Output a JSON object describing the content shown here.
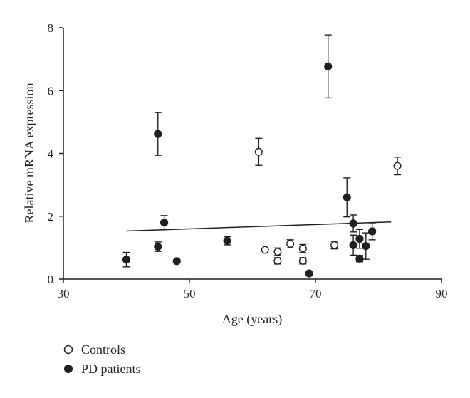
{
  "chart_data": {
    "type": "scatter",
    "title": "",
    "xlabel": "Age (years)",
    "ylabel": "Relative mRNA expression",
    "xlim": [
      30,
      90
    ],
    "ylim": [
      0,
      8
    ],
    "xticks": [
      "30",
      "50",
      "70",
      "90"
    ],
    "yticks": [
      "0",
      "2",
      "4",
      "6",
      "8"
    ],
    "grid": false,
    "legend_position": "bottom-left",
    "series": [
      {
        "name": "Controls",
        "marker": "open-circle",
        "points": [
          {
            "x": 61,
            "y": 4.05,
            "err": 0.43
          },
          {
            "x": 62,
            "y": 0.93,
            "err": 0
          },
          {
            "x": 64,
            "y": 0.87,
            "err": 0.12
          },
          {
            "x": 64,
            "y": 0.58,
            "err": 0.1
          },
          {
            "x": 66,
            "y": 1.12,
            "err": 0.13
          },
          {
            "x": 68,
            "y": 0.97,
            "err": 0.13
          },
          {
            "x": 68,
            "y": 0.58,
            "err": 0.1
          },
          {
            "x": 73,
            "y": 1.08,
            "err": 0.12
          },
          {
            "x": 83,
            "y": 3.6,
            "err": 0.28
          }
        ]
      },
      {
        "name": "PD patients",
        "marker": "filled-circle",
        "points": [
          {
            "x": 40,
            "y": 0.62,
            "err": 0.23
          },
          {
            "x": 45,
            "y": 4.62,
            "err": 0.68
          },
          {
            "x": 45,
            "y": 1.03,
            "err": 0.15
          },
          {
            "x": 46,
            "y": 1.8,
            "err": 0.22
          },
          {
            "x": 48,
            "y": 0.57,
            "err": 0
          },
          {
            "x": 56,
            "y": 1.22,
            "err": 0.13
          },
          {
            "x": 69,
            "y": 0.18,
            "err": 0
          },
          {
            "x": 72,
            "y": 6.77,
            "err": 1.0
          },
          {
            "x": 75,
            "y": 2.6,
            "err": 0.62
          },
          {
            "x": 76,
            "y": 1.77,
            "err": 0.27
          },
          {
            "x": 76,
            "y": 1.08,
            "err": 0.32
          },
          {
            "x": 77,
            "y": 1.28,
            "err": 0.3
          },
          {
            "x": 77,
            "y": 0.65,
            "err": 0.1
          },
          {
            "x": 78,
            "y": 1.05,
            "err": 0.42
          },
          {
            "x": 79,
            "y": 1.52,
            "err": 0.27
          }
        ]
      }
    ],
    "trendline": {
      "x": [
        40,
        82
      ],
      "y": [
        1.53,
        1.82
      ]
    },
    "colors": {
      "ink": "#231f20",
      "background": "#ffffff"
    }
  }
}
